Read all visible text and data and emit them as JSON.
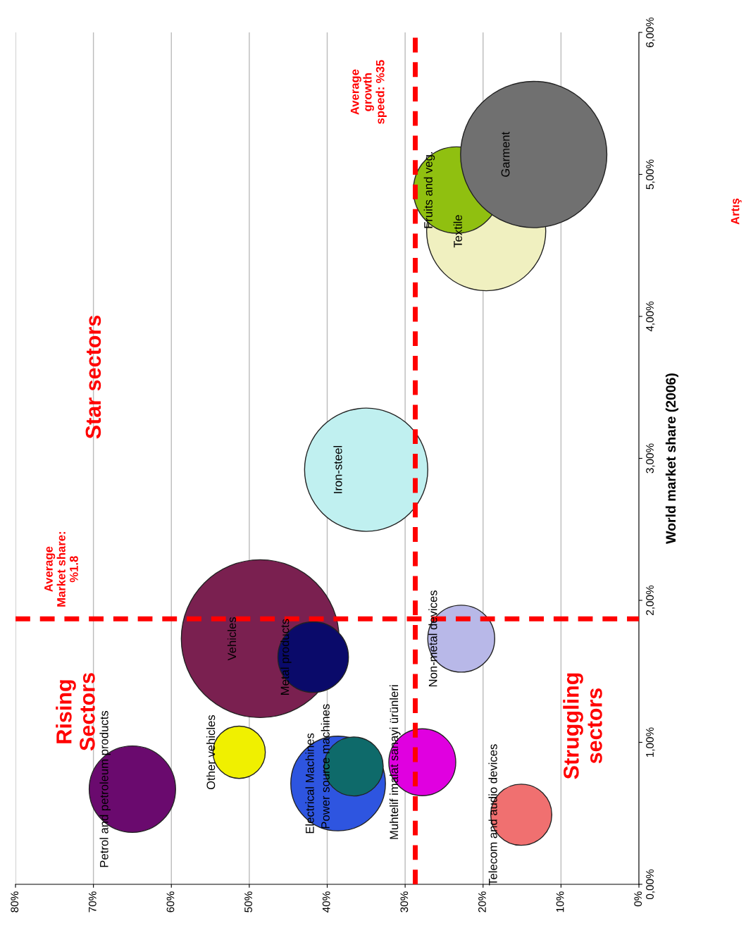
{
  "chart_data": {
    "type": "bubble",
    "xlabel": null,
    "ylabel": "World market share (2006)",
    "xlim": [
      80,
      0
    ],
    "xticks": [
      {
        "value": 80,
        "label": "80%"
      },
      {
        "value": 70,
        "label": "70%"
      },
      {
        "value": 60,
        "label": "60%"
      },
      {
        "value": 50,
        "label": "50%"
      },
      {
        "value": 40,
        "label": "40%"
      },
      {
        "value": 30,
        "label": "30%"
      },
      {
        "value": 20,
        "label": "20%"
      },
      {
        "value": 10,
        "label": "10%"
      },
      {
        "value": 0,
        "label": "0%"
      }
    ],
    "ylim": [
      0,
      6
    ],
    "yticks": [
      {
        "value": 0,
        "label": "0,00%"
      },
      {
        "value": 1,
        "label": "1,00%"
      },
      {
        "value": 2,
        "label": "2,00%"
      },
      {
        "value": 3,
        "label": "3,00%"
      },
      {
        "value": 4,
        "label": "4,00%"
      },
      {
        "value": 5,
        "label": "5,00%"
      },
      {
        "value": 6,
        "label": "6,00%"
      }
    ],
    "grid": "x",
    "legend": false,
    "series": [
      {
        "name": "Petrol and petroleum products",
        "color": "#6a0a6e",
        "x": [
          65.0
        ],
        "values": [
          0.67
        ],
        "sizes": [
          0.3
        ]
      },
      {
        "name": "Other vehicles",
        "color": "#f0f000",
        "x": [
          51.3
        ],
        "values": [
          0.93
        ],
        "sizes": [
          0.11
        ]
      },
      {
        "name": "Electrical Machines",
        "color": "#2e55e0",
        "x": [
          38.6
        ],
        "values": [
          0.71
        ],
        "sizes": [
          0.36
        ]
      },
      {
        "name": "Power source machines",
        "color": "#0e6a6a",
        "x": [
          36.6
        ],
        "values": [
          0.83
        ],
        "sizes": [
          0.14
        ]
      },
      {
        "name": "Vehicles",
        "color": "#7a2050",
        "x": [
          48.6
        ],
        "values": [
          1.73
        ],
        "sizes": [
          1
        ]
      },
      {
        "name": "Metal products",
        "color": "#0a0a6a",
        "x": [
          41.8
        ],
        "values": [
          1.6
        ],
        "sizes": [
          0.2
        ]
      },
      {
        "name": "Muhtelif imalat sanayi ürünleri",
        "color": "#e000e0",
        "x": [
          27.8
        ],
        "values": [
          0.86
        ],
        "sizes": [
          0.18
        ]
      },
      {
        "name": "Non-metal devices",
        "color": "#b8b8e8",
        "x": [
          22.8
        ],
        "values": [
          1.73
        ],
        "sizes": [
          0.18
        ]
      },
      {
        "name": "Telecom and audio devices",
        "color": "#f07070",
        "x": [
          15.1
        ],
        "values": [
          0.49
        ],
        "sizes": [
          0.15
        ]
      },
      {
        "name": "Iron-steel",
        "color": "#c0f0f0",
        "x": [
          35.0
        ],
        "values": [
          2.92
        ],
        "sizes": [
          0.61
        ]
      },
      {
        "name": "Textile",
        "color": "#f0f0c0",
        "x": [
          19.6
        ],
        "values": [
          4.6
        ],
        "sizes": [
          0.57
        ]
      },
      {
        "name": "Fruits and veg.",
        "color": "#90c010",
        "x": [
          23.4
        ],
        "values": [
          4.89
        ],
        "sizes": [
          0.3
        ]
      },
      {
        "name": "Garment",
        "color": "#707070",
        "x": [
          13.5
        ],
        "values": [
          5.14
        ],
        "sizes": [
          0.86
        ]
      }
    ],
    "ref_lines": [
      {
        "axis": "x",
        "value": 28.7,
        "label": "Average\ngrowth\nspeed: %35",
        "color": "#ff0000",
        "line_style": "dashed"
      },
      {
        "axis": "y",
        "value": 1.87,
        "label": "Average\nMarket share:\n%1.8",
        "color": "#ff0000",
        "line_style": "dashed"
      }
    ],
    "annotations": [
      "Star sectors",
      "Rising\nSectors",
      "Struggling\nsectors",
      "Artış"
    ]
  }
}
